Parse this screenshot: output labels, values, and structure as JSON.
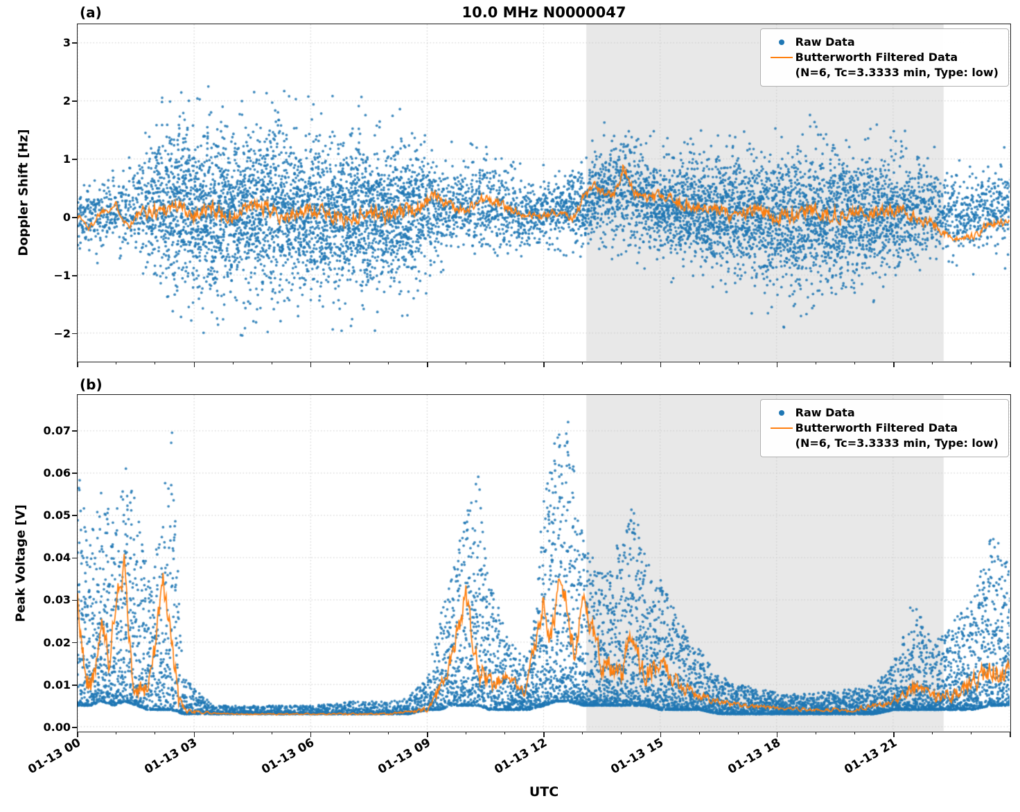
{
  "figure": {
    "title": "10.0 MHz N0000047",
    "xlabel": "UTC",
    "colors": {
      "raw": "#1f77b4",
      "filtered": "#ff7f0e",
      "night_shade": "#e8e8e8",
      "grid": "#c9c9c9",
      "spine": "#1a1a1a"
    },
    "xticks": [
      {
        "hour": 0,
        "label": "01-13 00"
      },
      {
        "hour": 3,
        "label": "01-13 03"
      },
      {
        "hour": 6,
        "label": "01-13 06"
      },
      {
        "hour": 9,
        "label": "01-13 09"
      },
      {
        "hour": 12,
        "label": "01-13 12"
      },
      {
        "hour": 15,
        "label": "01-13 15"
      },
      {
        "hour": 18,
        "label": "01-13 18"
      },
      {
        "hour": 21,
        "label": "01-13 21"
      }
    ]
  },
  "legend": {
    "raw_label": "Raw Data",
    "filtered_label": "Butterworth Filtered Data",
    "filtered_sublabel": "(N=6, Tc=3.3333 min, Type: low)"
  },
  "chart_data": [
    {
      "type": "scatter",
      "panel": "(a)",
      "ylabel": "Doppler Shift [Hz]",
      "ylim": [
        -2.48,
        3.32
      ],
      "yticks": [
        -2,
        -1,
        0,
        1,
        2,
        3
      ],
      "ytick_labels": [
        "−2",
        "−1",
        "0",
        "1",
        "2",
        "3"
      ],
      "xlim_hours": [
        0,
        24
      ],
      "shaded_region_hours": [
        13.1,
        22.3
      ],
      "scatter_style": "center",
      "raw_envelope": {
        "x": [
          0,
          0.5,
          1,
          1.5,
          2,
          2.5,
          3,
          3.5,
          4,
          4.5,
          5,
          5.5,
          6,
          6.5,
          7,
          7.5,
          8,
          8.5,
          9,
          9.5,
          10,
          10.5,
          11,
          11.5,
          12,
          12.5,
          13,
          13.5,
          14,
          14.5,
          15,
          15.5,
          16,
          16.5,
          17,
          17.5,
          18,
          18.5,
          19,
          19.5,
          20,
          20.5,
          21,
          21.5,
          22,
          22.5,
          23,
          23.5,
          24
        ],
        "lo": [
          -0.8,
          -0.9,
          -0.7,
          -1.0,
          -1.8,
          -2.0,
          -2.1,
          -2.0,
          -2.0,
          -2.1,
          -2.0,
          -2.0,
          -2.1,
          -2.0,
          -2.0,
          -2.1,
          -2.0,
          -1.9,
          -1.4,
          -1.0,
          -0.9,
          -1.0,
          -0.9,
          -0.8,
          -0.8,
          -0.7,
          -0.9,
          -0.9,
          -0.9,
          -0.9,
          -1.1,
          -1.2,
          -1.3,
          -1.5,
          -1.6,
          -1.8,
          -1.9,
          -2.0,
          -2.0,
          -1.9,
          -1.7,
          -1.6,
          -1.5,
          -1.3,
          -1.1,
          -1.0,
          -1.0,
          -0.9,
          -0.9
        ],
        "hi": [
          0.9,
          0.8,
          1.0,
          1.3,
          2.1,
          2.4,
          2.5,
          2.2,
          2.1,
          2.2,
          2.3,
          2.1,
          2.2,
          2.1,
          2.2,
          2.1,
          2.0,
          1.9,
          1.6,
          1.3,
          1.3,
          1.5,
          1.2,
          0.9,
          0.9,
          1.0,
          1.4,
          1.8,
          1.9,
          1.6,
          1.4,
          1.5,
          1.6,
          1.6,
          1.7,
          1.7,
          1.8,
          1.8,
          1.9,
          1.8,
          1.7,
          1.6,
          1.6,
          1.5,
          1.3,
          1.1,
          1.0,
          1.2,
          1.3
        ],
        "points_per_hour": [
          350,
          350,
          350,
          400,
          700,
          900,
          900,
          900,
          900,
          900,
          900,
          900,
          900,
          900,
          900,
          900,
          900,
          850,
          600,
          450,
          450,
          450,
          450,
          450,
          450,
          500,
          600,
          650,
          650,
          650,
          750,
          800,
          800,
          800,
          800,
          800,
          800,
          800,
          800,
          800,
          800,
          780,
          750,
          600,
          450,
          400,
          400,
          420,
          420
        ]
      },
      "filtered_line": {
        "x": [
          0,
          0.3,
          0.6,
          1.0,
          1.3,
          1.6,
          2.0,
          2.5,
          3.0,
          3.5,
          4.0,
          4.5,
          5.0,
          5.5,
          6.0,
          6.5,
          7.0,
          7.5,
          8.0,
          8.5,
          9.0,
          9.3,
          9.6,
          10.0,
          10.4,
          10.8,
          11.2,
          11.6,
          12.0,
          12.4,
          12.8,
          13.0,
          13.3,
          13.6,
          13.9,
          14.05,
          14.3,
          14.6,
          15.0,
          15.5,
          16.0,
          16.5,
          17.0,
          17.5,
          18.0,
          18.5,
          19.0,
          19.5,
          20.0,
          20.5,
          21.0,
          21.5,
          22.0,
          22.4,
          22.8,
          23.1,
          23.5,
          24.0
        ],
        "y": [
          0.05,
          -0.2,
          0.1,
          0.2,
          -0.15,
          0.05,
          0.1,
          0.2,
          0.05,
          0.15,
          -0.05,
          0.2,
          0.1,
          0.0,
          0.15,
          0.05,
          -0.05,
          0.1,
          0.0,
          0.1,
          0.3,
          0.35,
          0.2,
          0.1,
          0.3,
          0.25,
          0.1,
          0.05,
          0.0,
          0.1,
          0.0,
          0.3,
          0.5,
          0.35,
          0.5,
          0.9,
          0.45,
          0.3,
          0.35,
          0.25,
          0.15,
          0.1,
          0.05,
          0.1,
          0.0,
          0.05,
          0.1,
          0.05,
          0.1,
          0.05,
          0.15,
          0.0,
          -0.1,
          -0.3,
          -0.45,
          -0.3,
          -0.1,
          -0.15
        ],
        "jitter": 0.22
      }
    },
    {
      "type": "scatter",
      "panel": "(b)",
      "ylabel": "Peak Voltage [V]",
      "ylim": [
        -0.001,
        0.0785
      ],
      "yticks": [
        0.0,
        0.01,
        0.02,
        0.03,
        0.04,
        0.05,
        0.06,
        0.07
      ],
      "ytick_labels": [
        "0.00",
        "0.01",
        "0.02",
        "0.03",
        "0.04",
        "0.05",
        "0.06",
        "0.07"
      ],
      "xlim_hours": [
        0,
        24
      ],
      "shaded_region_hours": [
        13.1,
        22.3
      ],
      "scatter_style": "bottom",
      "raw_envelope": {
        "x": [
          0,
          0.3,
          0.6,
          0.9,
          1.2,
          1.5,
          1.8,
          2.1,
          2.4,
          2.7,
          3,
          3.5,
          4,
          5,
          6,
          7,
          8,
          8.5,
          9,
          9.3,
          9.6,
          10,
          10.3,
          10.6,
          11,
          11.3,
          11.6,
          12,
          12.3,
          12.6,
          13,
          13.3,
          13.6,
          14,
          14.3,
          14.6,
          15,
          15.5,
          16,
          16.5,
          17,
          18,
          19,
          20,
          20.5,
          21,
          21.5,
          22,
          22.5,
          23,
          23.5,
          24
        ],
        "lo": [
          0.005,
          0.005,
          0.006,
          0.005,
          0.006,
          0.005,
          0.004,
          0.004,
          0.004,
          0.003,
          0.003,
          0.003,
          0.003,
          0.003,
          0.003,
          0.003,
          0.003,
          0.003,
          0.004,
          0.004,
          0.005,
          0.005,
          0.005,
          0.004,
          0.004,
          0.004,
          0.004,
          0.005,
          0.006,
          0.006,
          0.005,
          0.005,
          0.005,
          0.005,
          0.005,
          0.005,
          0.004,
          0.004,
          0.004,
          0.003,
          0.003,
          0.003,
          0.003,
          0.003,
          0.003,
          0.004,
          0.004,
          0.004,
          0.004,
          0.004,
          0.005,
          0.005
        ],
        "hi": [
          0.064,
          0.045,
          0.057,
          0.048,
          0.064,
          0.052,
          0.035,
          0.048,
          0.07,
          0.012,
          0.009,
          0.005,
          0.005,
          0.005,
          0.005,
          0.006,
          0.006,
          0.007,
          0.012,
          0.025,
          0.035,
          0.05,
          0.06,
          0.035,
          0.022,
          0.018,
          0.016,
          0.055,
          0.068,
          0.073,
          0.045,
          0.04,
          0.036,
          0.046,
          0.055,
          0.04,
          0.035,
          0.025,
          0.018,
          0.012,
          0.01,
          0.008,
          0.008,
          0.009,
          0.01,
          0.015,
          0.03,
          0.02,
          0.025,
          0.03,
          0.045,
          0.042
        ],
        "points_per_hour": [
          800,
          800,
          800,
          800,
          800,
          800,
          700,
          700,
          700,
          500,
          400,
          350,
          350,
          350,
          350,
          350,
          350,
          400,
          500,
          600,
          700,
          800,
          800,
          700,
          700,
          700,
          700,
          900,
          900,
          900,
          900,
          900,
          900,
          900,
          900,
          900,
          850,
          800,
          750,
          700,
          700,
          650,
          650,
          650,
          700,
          750,
          800,
          750,
          800,
          800,
          850,
          850
        ]
      },
      "filtered_line": {
        "x": [
          0,
          0.2,
          0.4,
          0.6,
          0.8,
          1.0,
          1.2,
          1.4,
          1.6,
          1.8,
          2.0,
          2.2,
          2.4,
          2.6,
          2.8,
          3,
          4,
          5,
          6,
          7,
          8,
          9,
          9.5,
          10,
          10.3,
          10.6,
          11,
          11.5,
          12,
          12.2,
          12.4,
          12.6,
          12.8,
          13,
          13.2,
          13.5,
          14,
          14.3,
          14.6,
          15,
          15.5,
          16,
          16.5,
          17,
          18,
          19,
          20,
          21,
          21.5,
          22,
          22.5,
          23,
          23.5,
          24
        ],
        "y": [
          0.03,
          0.012,
          0.01,
          0.025,
          0.015,
          0.03,
          0.038,
          0.012,
          0.008,
          0.01,
          0.018,
          0.035,
          0.022,
          0.006,
          0.004,
          0.0035,
          0.003,
          0.003,
          0.003,
          0.003,
          0.003,
          0.004,
          0.012,
          0.03,
          0.015,
          0.01,
          0.012,
          0.008,
          0.03,
          0.02,
          0.035,
          0.03,
          0.015,
          0.03,
          0.025,
          0.015,
          0.013,
          0.022,
          0.012,
          0.015,
          0.01,
          0.007,
          0.006,
          0.005,
          0.0045,
          0.004,
          0.004,
          0.006,
          0.01,
          0.007,
          0.008,
          0.01,
          0.013,
          0.012
        ],
        "jitter": 0.004
      }
    }
  ]
}
